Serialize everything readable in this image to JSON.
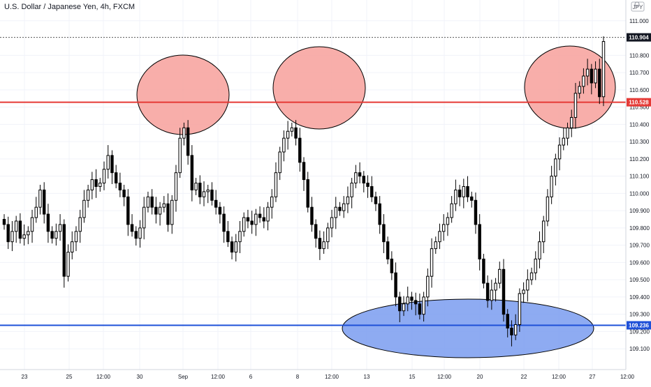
{
  "header": {
    "title": "U.S. Dollar / Japanese Yen, 4h, FXCM",
    "currency_badge": "JPY",
    "settings_icon": "gear-icon"
  },
  "colors": {
    "background": "#ffffff",
    "grid": "#f0f3fa",
    "candle": "#000000",
    "resistance_line": "#e53935",
    "support_line": "#1e50d8",
    "resistance_zone_fill": "#f7a09b",
    "support_zone_fill": "#7a9cf0",
    "price_tag_current": "#131722"
  },
  "chart_data": {
    "type": "candlestick",
    "instrument": "U.S. Dollar / Japanese Yen",
    "timeframe": "4h",
    "source": "FXCM",
    "y_axis": {
      "range": [
        109.02,
        111.08
      ],
      "ticks": [
        109.1,
        109.2,
        109.3,
        109.4,
        109.5,
        109.6,
        109.7,
        109.8,
        109.9,
        110.0,
        110.1,
        110.2,
        110.3,
        110.4,
        110.5,
        110.6,
        110.7,
        110.8,
        111.0
      ],
      "tick_labels": [
        "109.100",
        "109.200",
        "109.300",
        "109.400",
        "109.500",
        "109.600",
        "109.700",
        "109.800",
        "109.900",
        "110.000",
        "110.100",
        "110.200",
        "110.300",
        "110.400",
        "110.500",
        "110.600",
        "110.700",
        "110.800",
        "111.000"
      ]
    },
    "x_axis": {
      "labels": [
        "23",
        "25",
        "12:00",
        "30",
        "Sep",
        "12:00",
        "6",
        "8",
        "12:00",
        "13",
        "15",
        "12:00",
        "20",
        "22",
        "12:00",
        "27",
        "12:00"
      ]
    },
    "price_levels": [
      {
        "label": "110.904",
        "value": 110.904,
        "kind": "last-price",
        "style": "dotted"
      },
      {
        "label": "110.528",
        "value": 110.528,
        "kind": "resistance",
        "style": "solid"
      },
      {
        "label": "109.236",
        "value": 109.236,
        "kind": "support",
        "style": "solid"
      }
    ],
    "zones": [
      {
        "kind": "resistance",
        "center_x_label": "Sep",
        "center_price": 110.53
      },
      {
        "kind": "resistance",
        "center_x_label": "8",
        "center_price": 110.53
      },
      {
        "kind": "resistance",
        "center_x_label": "27",
        "center_price": 110.53
      },
      {
        "kind": "support",
        "center_x_label": "20",
        "center_price": 109.22
      }
    ],
    "closes": [
      109.82,
      109.72,
      109.78,
      109.84,
      109.74,
      109.76,
      109.78,
      109.86,
      109.92,
      110.02,
      109.88,
      109.78,
      109.74,
      109.78,
      109.82,
      109.52,
      109.66,
      109.72,
      109.78,
      109.86,
      109.96,
      110.02,
      110.08,
      110.04,
      110.06,
      110.14,
      110.22,
      110.12,
      110.06,
      110.02,
      109.98,
      109.82,
      109.78,
      109.74,
      109.8,
      109.92,
      109.98,
      109.92,
      109.88,
      109.92,
      109.94,
      109.82,
      109.96,
      110.12,
      110.32,
      110.38,
      110.22,
      110.02,
      110.06,
      109.98,
      110.01,
      110.02,
      109.96,
      109.92,
      109.88,
      109.78,
      109.72,
      109.66,
      109.72,
      109.78,
      109.86,
      109.84,
      109.82,
      109.88,
      109.86,
      109.84,
      109.92,
      109.98,
      110.12,
      110.24,
      110.32,
      110.36,
      110.38,
      110.32,
      110.18,
      110.08,
      109.92,
      109.82,
      109.74,
      109.68,
      109.72,
      109.8,
      109.86,
      109.92,
      109.9,
      109.94,
      109.98,
      110.06,
      110.12,
      110.1,
      110.06,
      110.04,
      109.98,
      109.94,
      109.82,
      109.72,
      109.62,
      109.54,
      109.4,
      109.32,
      109.36,
      109.4,
      109.38,
      109.36,
      109.3,
      109.4,
      109.52,
      109.68,
      109.72,
      109.78,
      109.82,
      109.86,
      109.94,
      110.02,
      109.98,
      110.04,
      109.98,
      109.96,
      109.82,
      109.62,
      109.48,
      109.38,
      109.44,
      109.48,
      109.56,
      109.3,
      109.22,
      109.18,
      109.24,
      109.42,
      109.44,
      109.5,
      109.54,
      109.62,
      109.72,
      109.84,
      109.98,
      110.1,
      110.2,
      110.28,
      110.32,
      110.38,
      110.44,
      110.58,
      110.62,
      110.68,
      110.72,
      110.64,
      110.72,
      110.56,
      110.88
    ]
  }
}
